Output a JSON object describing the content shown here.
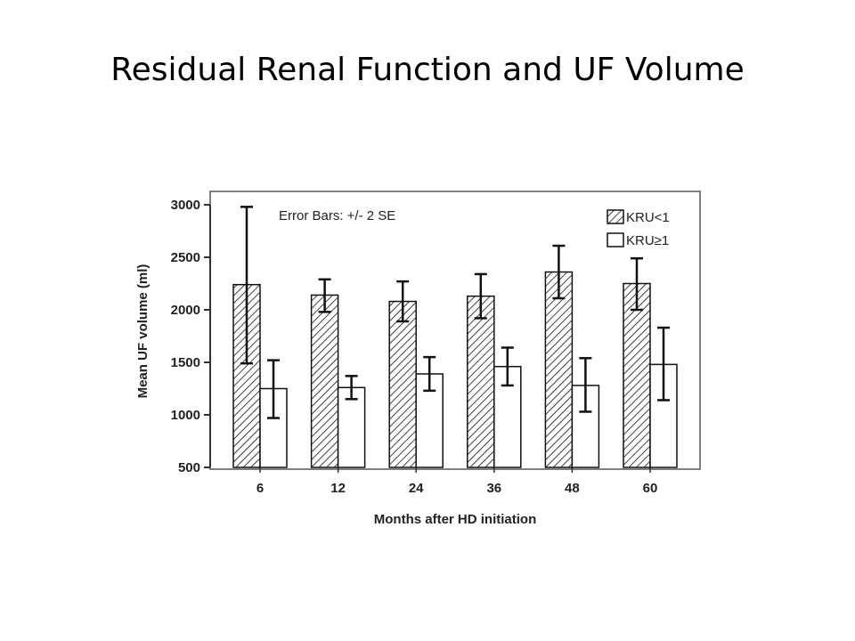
{
  "slide": {
    "title": "Residual Renal Function and UF Volume"
  },
  "chart_data": {
    "type": "bar",
    "title": "",
    "xlabel": "Months after HD initiation",
    "ylabel": "Mean UF volume (ml)",
    "ylim": [
      500,
      3000
    ],
    "yticks": [
      500,
      1000,
      1500,
      2000,
      2500,
      3000
    ],
    "categories": [
      "6",
      "12",
      "24",
      "36",
      "48",
      "60"
    ],
    "annotation": "Error Bars: +/- 2 SE",
    "legend_position": "top-right",
    "grid": false,
    "series": [
      {
        "name": "KRU<1",
        "pattern": "diagonal-hatch",
        "values": [
          2240,
          2140,
          2080,
          2130,
          2360,
          2250
        ],
        "error_low": [
          1490,
          1980,
          1890,
          1920,
          2110,
          2000
        ],
        "error_high": [
          2980,
          2290,
          2270,
          2340,
          2610,
          2490
        ]
      },
      {
        "name": "KRU≥1",
        "pattern": "solid-white",
        "values": [
          1250,
          1260,
          1390,
          1460,
          1280,
          1480
        ],
        "error_low": [
          970,
          1150,
          1230,
          1280,
          1030,
          1140
        ],
        "error_high": [
          1520,
          1370,
          1550,
          1640,
          1540,
          1830
        ]
      }
    ],
    "colors": {
      "bar_stroke": "#111111",
      "axis": "#333333",
      "frame": "#555555",
      "text": "#222222"
    }
  }
}
